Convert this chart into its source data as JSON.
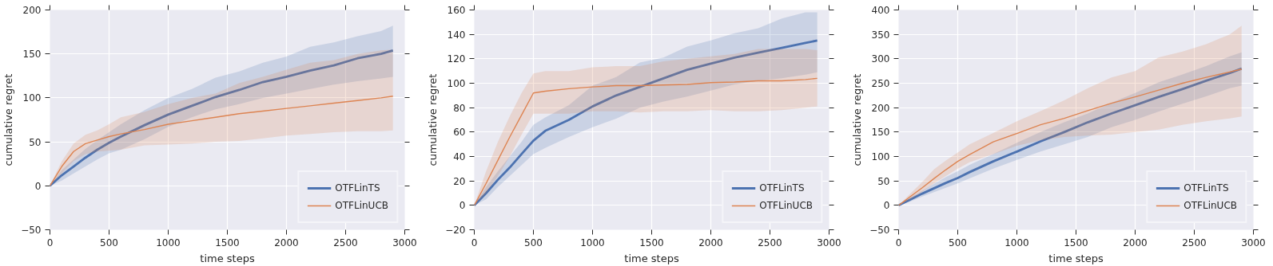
{
  "chart_data": [
    {
      "type": "line",
      "xlabel": "time steps",
      "ylabel": "cumulative regret",
      "xlim": [
        0,
        3000
      ],
      "ylim": [
        -50,
        200
      ],
      "xticks": [
        0,
        500,
        1000,
        1500,
        2000,
        2500,
        3000
      ],
      "yticks": [
        -50,
        0,
        50,
        100,
        150,
        200
      ],
      "grid": true,
      "legend": "bottom right",
      "x": [
        0,
        100,
        200,
        300,
        400,
        500,
        600,
        800,
        1000,
        1200,
        1400,
        1600,
        1800,
        2000,
        2200,
        2400,
        2600,
        2800,
        2900
      ],
      "series": [
        {
          "name": "OTFLinTS",
          "color": "#4c72b0",
          "values": [
            0,
            12,
            22,
            32,
            41,
            49,
            56,
            69,
            81,
            91,
            101,
            109,
            118,
            124,
            131,
            137,
            145,
            150,
            154
          ],
          "lower": [
            0,
            6,
            14,
            22,
            30,
            37,
            41,
            53,
            67,
            78,
            87,
            93,
            100,
            105,
            110,
            115,
            119,
            122,
            124
          ],
          "upper": [
            0,
            18,
            30,
            42,
            52,
            61,
            70,
            86,
            100,
            110,
            123,
            130,
            140,
            147,
            158,
            163,
            170,
            176,
            182
          ]
        },
        {
          "name": "OTFLinUCB",
          "color": "#dd8452",
          "values": [
            0,
            22,
            39,
            48,
            52,
            56,
            59,
            64,
            70,
            74,
            78,
            82,
            85,
            88,
            91,
            94,
            97,
            100,
            102
          ],
          "lower": [
            0,
            14,
            28,
            36,
            39,
            40,
            41,
            46,
            47,
            48,
            50,
            51,
            54,
            57,
            59,
            61,
            62,
            62,
            63
          ],
          "upper": [
            0,
            28,
            48,
            58,
            63,
            70,
            78,
            84,
            93,
            100,
            105,
            117,
            124,
            132,
            140,
            143,
            150,
            154,
            155
          ]
        }
      ]
    },
    {
      "type": "line",
      "xlabel": "time steps",
      "ylabel": "cumulative regret",
      "xlim": [
        0,
        3000
      ],
      "ylim": [
        -20,
        160
      ],
      "xticks": [
        0,
        500,
        1000,
        1500,
        2000,
        2500,
        3000
      ],
      "yticks": [
        -20,
        0,
        20,
        40,
        60,
        80,
        100,
        120,
        140,
        160
      ],
      "grid": true,
      "legend": "bottom right",
      "x": [
        0,
        100,
        200,
        300,
        400,
        500,
        600,
        800,
        1000,
        1200,
        1400,
        1600,
        1800,
        2000,
        2200,
        2400,
        2600,
        2800,
        2900
      ],
      "series": [
        {
          "name": "OTFLinTS",
          "color": "#4c72b0",
          "values": [
            0,
            10,
            21,
            31,
            42,
            53,
            61,
            70,
            81,
            90,
            97,
            104,
            111,
            116,
            121,
            125,
            129,
            133,
            135
          ],
          "lower": [
            0,
            5,
            15,
            24,
            33,
            42,
            47,
            56,
            64,
            71,
            80,
            85,
            89,
            94,
            99,
            102,
            104,
            107,
            109
          ],
          "upper": [
            0,
            15,
            28,
            40,
            52,
            66,
            72,
            82,
            98,
            105,
            117,
            121,
            130,
            135,
            141,
            145,
            153,
            158,
            158
          ]
        },
        {
          "name": "OTFLinUCB",
          "color": "#dd8452",
          "values": [
            0,
            18,
            37,
            56,
            74,
            92,
            93.5,
            95.5,
            97,
            98,
            98,
            98.5,
            99,
            100.5,
            101,
            102,
            102,
            103,
            104
          ],
          "lower": [
            0,
            10,
            24,
            40,
            58,
            75,
            75,
            75,
            77,
            77,
            76,
            77,
            77,
            78,
            77,
            77,
            78,
            80,
            81
          ],
          "upper": [
            0,
            28,
            52,
            73,
            92,
            108,
            110,
            110,
            113,
            114,
            114,
            118,
            120,
            122,
            124,
            128,
            128,
            128,
            127
          ]
        }
      ]
    },
    {
      "type": "line",
      "xlabel": "time steps",
      "ylabel": "cumulative regret",
      "xlim": [
        0,
        3000
      ],
      "ylim": [
        -50,
        400
      ],
      "xticks": [
        0,
        500,
        1000,
        1500,
        2000,
        2500,
        3000
      ],
      "yticks": [
        -50,
        0,
        50,
        100,
        150,
        200,
        250,
        300,
        350,
        400
      ],
      "grid": true,
      "legend": "bottom right",
      "x": [
        0,
        100,
        200,
        300,
        400,
        500,
        600,
        800,
        1000,
        1200,
        1400,
        1600,
        1800,
        2000,
        2200,
        2400,
        2600,
        2800,
        2900
      ],
      "series": [
        {
          "name": "OTFLinTS",
          "color": "#4c72b0",
          "values": [
            0,
            12,
            24,
            35,
            46,
            56,
            68,
            90,
            110,
            131,
            150,
            170,
            188,
            205,
            222,
            238,
            255,
            271,
            280
          ],
          "lower": [
            0,
            8,
            18,
            27,
            36,
            45,
            55,
            75,
            93,
            110,
            125,
            140,
            160,
            175,
            192,
            208,
            223,
            240,
            245
          ],
          "upper": [
            0,
            16,
            30,
            44,
            58,
            70,
            83,
            105,
            128,
            150,
            170,
            188,
            210,
            230,
            252,
            268,
            285,
            305,
            313
          ]
        },
        {
          "name": "OTFLinUCB",
          "color": "#dd8452",
          "values": [
            0,
            18,
            36,
            55,
            73,
            90,
            104,
            130,
            147,
            165,
            178,
            194,
            209,
            222,
            236,
            250,
            262,
            273,
            279
          ],
          "lower": [
            0,
            12,
            28,
            45,
            60,
            75,
            88,
            105,
            122,
            133,
            140,
            143,
            145,
            150,
            155,
            165,
            172,
            178,
            182
          ],
          "upper": [
            0,
            24,
            48,
            74,
            92,
            108,
            125,
            148,
            172,
            193,
            215,
            240,
            262,
            275,
            303,
            315,
            330,
            350,
            368
          ]
        }
      ]
    }
  ]
}
